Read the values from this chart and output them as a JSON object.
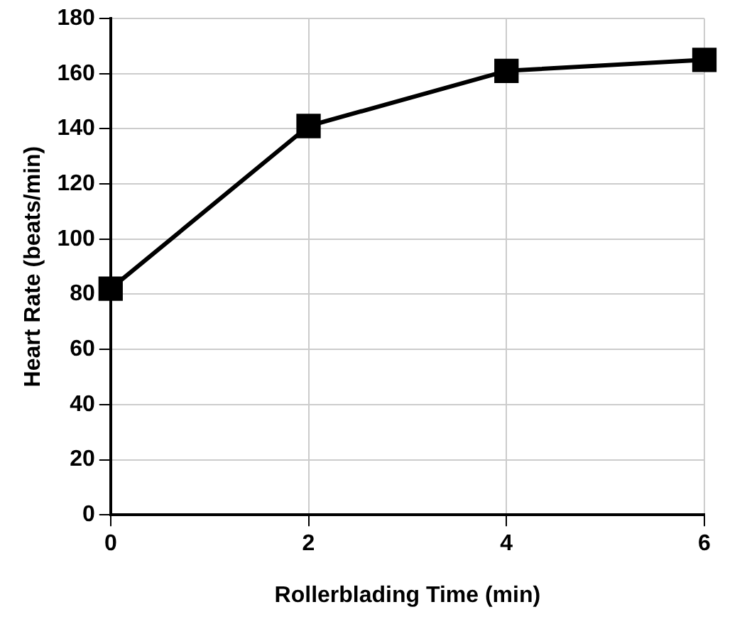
{
  "chart_data": {
    "type": "line",
    "xlabel": "Rollerblading Time (min)",
    "ylabel": "Heart Rate (beats/min)",
    "x": [
      0,
      2,
      4,
      6
    ],
    "series": [
      {
        "color": "#000000",
        "values": [
          82,
          141,
          161,
          165
        ]
      }
    ],
    "xlim": [
      0,
      6
    ],
    "xticks": [
      0,
      2,
      4,
      6
    ],
    "ylim": [
      0,
      180
    ],
    "yticks": [
      0,
      20,
      40,
      60,
      80,
      100,
      120,
      140,
      160,
      180
    ],
    "grid": true,
    "legend": false,
    "marker": "square",
    "line_style": "solid"
  }
}
